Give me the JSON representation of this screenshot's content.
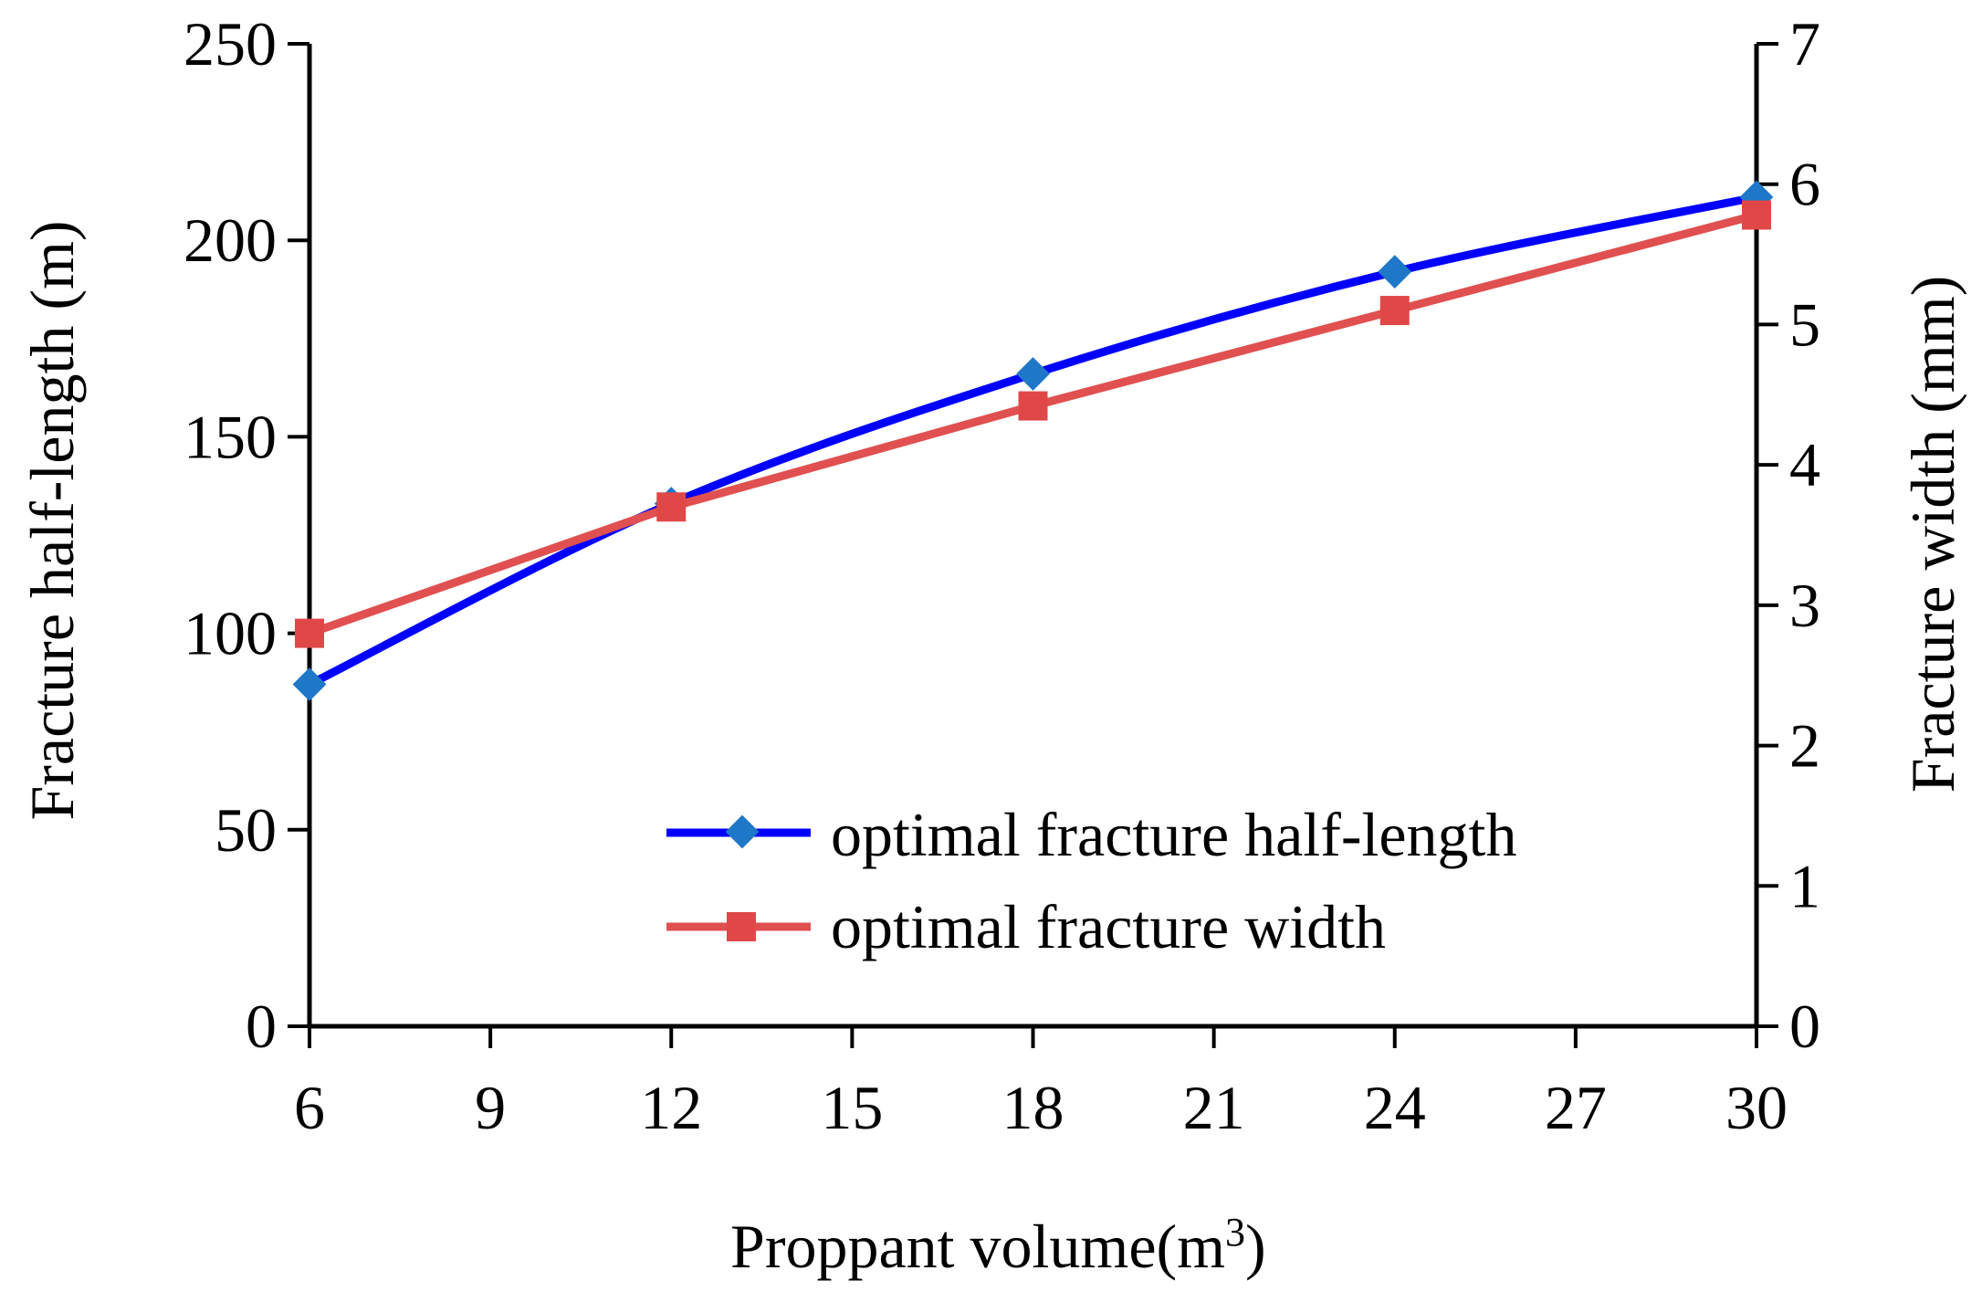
{
  "chart_data": {
    "type": "line",
    "title": "",
    "xlabel": "Proppant volume(m",
    "xlabel_superscript": "3",
    "xlabel_suffix": ")",
    "ylabel_left": "Fracture half-length (m)",
    "ylabel_right": "Fracture width (mm)",
    "x": [
      6,
      12,
      18,
      24,
      30
    ],
    "xlim": [
      6,
      30
    ],
    "x_ticks": [
      6,
      9,
      12,
      15,
      18,
      21,
      24,
      27,
      30
    ],
    "ylim_left": [
      0,
      250
    ],
    "y_ticks_left": [
      0,
      50,
      100,
      150,
      200,
      250
    ],
    "ylim_right": [
      0,
      7
    ],
    "y_ticks_right": [
      0,
      1,
      2,
      3,
      4,
      5,
      6,
      7
    ],
    "grid": false,
    "legend_position": "bottom-right",
    "series": [
      {
        "name": "optimal fracture half-length",
        "axis": "left",
        "marker": "diamond",
        "smooth": true,
        "color": "#0000ff",
        "marker_color": "#1f77c8",
        "values": [
          87,
          133,
          166,
          192,
          211
        ]
      },
      {
        "name": "optimal fracture width",
        "axis": "right",
        "marker": "square",
        "smooth": false,
        "color": "#e05050",
        "marker_color": "#e04848",
        "values": [
          2.8,
          3.7,
          4.42,
          5.1,
          5.78
        ]
      }
    ]
  }
}
